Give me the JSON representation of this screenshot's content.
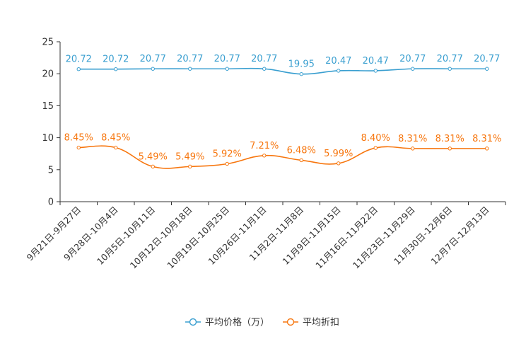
{
  "chart_data": {
    "type": "line",
    "title": "",
    "xlabel": "",
    "ylabel": "",
    "ylim": [
      0,
      25
    ],
    "yticks": [
      0,
      5,
      10,
      15,
      20,
      25
    ],
    "categories": [
      "9月21日-9月27日",
      "9月28日-10月4日",
      "10月5日-10月11日",
      "10月12日-10月18日",
      "10月19日-10月25日",
      "10月26日-11月1日",
      "11月2日-11月8日",
      "11月9日-11月15日",
      "11月16日-11月22日",
      "11月23日-11月29日",
      "11月30日-12月6日",
      "12月7日-12月13日"
    ],
    "series": [
      {
        "name": "平均价格（万）",
        "color": "#3a9fd0",
        "values": [
          20.72,
          20.72,
          20.77,
          20.77,
          20.77,
          20.77,
          19.95,
          20.47,
          20.47,
          20.77,
          20.77,
          20.77
        ],
        "labels": [
          "20.72",
          "20.72",
          "20.77",
          "20.77",
          "20.77",
          "20.77",
          "19.95",
          "20.47",
          "20.47",
          "20.77",
          "20.77",
          "20.77"
        ]
      },
      {
        "name": "平均折扣",
        "color": "#f7760e",
        "values": [
          8.45,
          8.45,
          5.49,
          5.49,
          5.92,
          7.21,
          6.48,
          5.99,
          8.4,
          8.31,
          8.31,
          8.31
        ],
        "labels": [
          "8.45%",
          "8.45%",
          "5.49%",
          "5.49%",
          "5.92%",
          "7.21%",
          "6.48%",
          "5.99%",
          "8.40%",
          "8.31%",
          "8.31%",
          "8.31%"
        ]
      }
    ],
    "legend_position": "bottom-center"
  }
}
